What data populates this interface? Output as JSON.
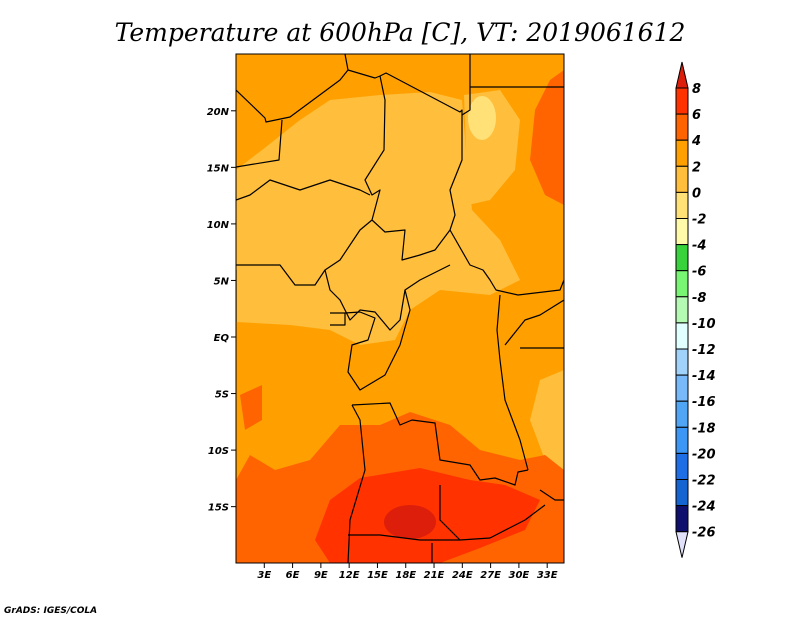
{
  "title": "Temperature at 600hPa [C], VT: 2019061612",
  "footer": "GrADS: IGES/COLA",
  "chart_data": {
    "type": "heatmap",
    "title": "Temperature at 600hPa [C], VT: 2019061612",
    "variable": "Temperature at 600hPa",
    "units": "C",
    "valid_time": "2019061612",
    "lon_range": [
      0,
      35
    ],
    "lat_range": [
      -20,
      25
    ],
    "lat_ticks": [
      {
        "value": 20,
        "label": "20N"
      },
      {
        "value": 15,
        "label": "15N"
      },
      {
        "value": 10,
        "label": "10N"
      },
      {
        "value": 5,
        "label": "5N"
      },
      {
        "value": 0,
        "label": "EQ"
      },
      {
        "value": -5,
        "label": "5S"
      },
      {
        "value": -10,
        "label": "10S"
      },
      {
        "value": -15,
        "label": "15S"
      }
    ],
    "lon_ticks": [
      {
        "value": 3,
        "label": "3E"
      },
      {
        "value": 6,
        "label": "6E"
      },
      {
        "value": 9,
        "label": "9E"
      },
      {
        "value": 12,
        "label": "12E"
      },
      {
        "value": 15,
        "label": "15E"
      },
      {
        "value": 18,
        "label": "18E"
      },
      {
        "value": 21,
        "label": "21E"
      },
      {
        "value": 24,
        "label": "24E"
      },
      {
        "value": 27,
        "label": "27E"
      },
      {
        "value": 30,
        "label": "30E"
      },
      {
        "value": 33,
        "label": "33E"
      }
    ],
    "colorbar": {
      "levels": [
        "8",
        "6",
        "4",
        "2",
        "0",
        "-2",
        "-4",
        "-6",
        "-8",
        "-10",
        "-12",
        "-14",
        "-16",
        "-18",
        "-20",
        "-22",
        "-24",
        "-26"
      ],
      "above_color": "#dc1e0a",
      "below_color": "#e1e1fa",
      "colors": [
        "#ff3200",
        "#ff6400",
        "#ffa000",
        "#ffbe3c",
        "#ffe178",
        "#fffaaa",
        "#37d23c",
        "#78f573",
        "#b4fab4",
        "#e1ffff",
        "#a0d2fa",
        "#78b9fa",
        "#50a5f5",
        "#3c96f5",
        "#1e6ee6",
        "#1464d2",
        "#0f0f6e"
      ]
    },
    "dominant_range_C": [
      0,
      8
    ],
    "max_region": "southern Angola / western Zambia (~18E, 16S), above 8C"
  }
}
